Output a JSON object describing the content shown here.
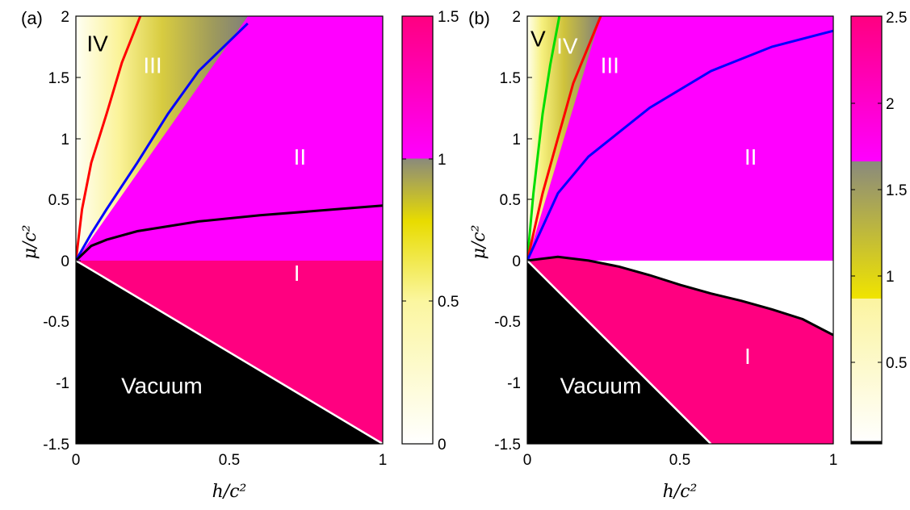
{
  "chart_data": [
    {
      "type": "heatmap",
      "panel_label": "(a)",
      "xlabel": "h/c²",
      "ylabel": "μ/c²",
      "xlim": [
        0,
        1
      ],
      "ylim": [
        -1.5,
        2
      ],
      "x_ticks": [
        "0",
        "0.5",
        "1"
      ],
      "y_ticks": [
        "-1.5",
        "-1",
        "-0.5",
        "0",
        "0.5",
        "1",
        "1.5",
        "2"
      ],
      "colorbar": {
        "range": [
          0,
          1.5
        ],
        "ticks": [
          "0",
          "0.5",
          "1",
          "1.5"
        ]
      },
      "regions": [
        {
          "label": "IV",
          "x": 0.07,
          "y": 1.78,
          "color": "#000000"
        },
        {
          "label": "III",
          "x": 0.25,
          "y": 1.6,
          "color": "#ffffff"
        },
        {
          "label": "II",
          "x": 0.73,
          "y": 0.85,
          "color": "#ffffff"
        },
        {
          "label": "I",
          "x": 0.72,
          "y": -0.1,
          "color": "#ffffff"
        },
        {
          "label": "Vacuum",
          "x": 0.28,
          "y": -1.02,
          "color": "#ffffff"
        }
      ],
      "boundaries": [
        {
          "color": "#ff0000",
          "points": [
            [
              0,
              0
            ],
            [
              0.02,
              0.42
            ],
            [
              0.05,
              0.8
            ],
            [
              0.1,
              1.2
            ],
            [
              0.15,
              1.62
            ],
            [
              0.21,
              2.0
            ]
          ]
        },
        {
          "color": "#0000ff",
          "points": [
            [
              0,
              0
            ],
            [
              0.05,
              0.22
            ],
            [
              0.1,
              0.42
            ],
            [
              0.2,
              0.8
            ],
            [
              0.3,
              1.2
            ],
            [
              0.4,
              1.55
            ],
            [
              0.56,
              1.94
            ]
          ]
        },
        {
          "color": "#000000",
          "points": [
            [
              0,
              0
            ],
            [
              0.05,
              0.12
            ],
            [
              0.1,
              0.17
            ],
            [
              0.2,
              0.24
            ],
            [
              0.4,
              0.32
            ],
            [
              0.6,
              0.37
            ],
            [
              0.8,
              0.41
            ],
            [
              1.0,
              0.45
            ]
          ]
        },
        {
          "color": "#ffffff",
          "points": [
            [
              0,
              0
            ],
            [
              1,
              -1.5
            ]
          ]
        }
      ]
    },
    {
      "type": "heatmap",
      "panel_label": "(b)",
      "xlabel": "h/c²",
      "ylabel": "μ/c²",
      "xlim": [
        0,
        1
      ],
      "ylim": [
        -1.5,
        2
      ],
      "x_ticks": [
        "0",
        "0.5",
        "1"
      ],
      "y_ticks": [
        "-1.5",
        "-1",
        "-0.5",
        "0",
        "0.5",
        "1",
        "1.5",
        "2"
      ],
      "colorbar": {
        "range": [
          0,
          2.5
        ],
        "ticks": [
          "0.5",
          "1",
          "1.5",
          "2",
          "2.5"
        ]
      },
      "regions": [
        {
          "label": "V",
          "x": 0.035,
          "y": 1.82,
          "color": "#000000"
        },
        {
          "label": "IV",
          "x": 0.13,
          "y": 1.76,
          "color": "#ffffff"
        },
        {
          "label": "III",
          "x": 0.27,
          "y": 1.6,
          "color": "#ffffff"
        },
        {
          "label": "II",
          "x": 0.73,
          "y": 0.85,
          "color": "#ffffff"
        },
        {
          "label": "I",
          "x": 0.72,
          "y": -0.78,
          "color": "#ffffff"
        },
        {
          "label": "Vacuum",
          "x": 0.24,
          "y": -1.02,
          "color": "#ffffff"
        }
      ],
      "boundaries": [
        {
          "color": "#00dd00",
          "points": [
            [
              0,
              0
            ],
            [
              0.02,
              0.55
            ],
            [
              0.05,
              1.2
            ],
            [
              0.075,
              1.6
            ],
            [
              0.105,
              2.0
            ]
          ]
        },
        {
          "color": "#ff0000",
          "points": [
            [
              0,
              0
            ],
            [
              0.05,
              0.55
            ],
            [
              0.1,
              1.0
            ],
            [
              0.15,
              1.45
            ],
            [
              0.24,
              2.0
            ]
          ]
        },
        {
          "color": "#0000ff",
          "points": [
            [
              0,
              0
            ],
            [
              0.1,
              0.55
            ],
            [
              0.2,
              0.85
            ],
            [
              0.4,
              1.25
            ],
            [
              0.6,
              1.55
            ],
            [
              0.8,
              1.75
            ],
            [
              1.0,
              1.88
            ]
          ]
        },
        {
          "color": "#000000",
          "points": [
            [
              0,
              0
            ],
            [
              0.1,
              0.03
            ],
            [
              0.2,
              0.0
            ],
            [
              0.3,
              -0.05
            ],
            [
              0.4,
              -0.12
            ],
            [
              0.5,
              -0.2
            ],
            [
              0.6,
              -0.27
            ],
            [
              0.7,
              -0.33
            ],
            [
              0.8,
              -0.4
            ],
            [
              0.9,
              -0.48
            ],
            [
              1.0,
              -0.61
            ]
          ]
        },
        {
          "color": "#ffffff",
          "points": [
            [
              0,
              0
            ],
            [
              0.6,
              -1.5
            ]
          ]
        }
      ]
    }
  ]
}
